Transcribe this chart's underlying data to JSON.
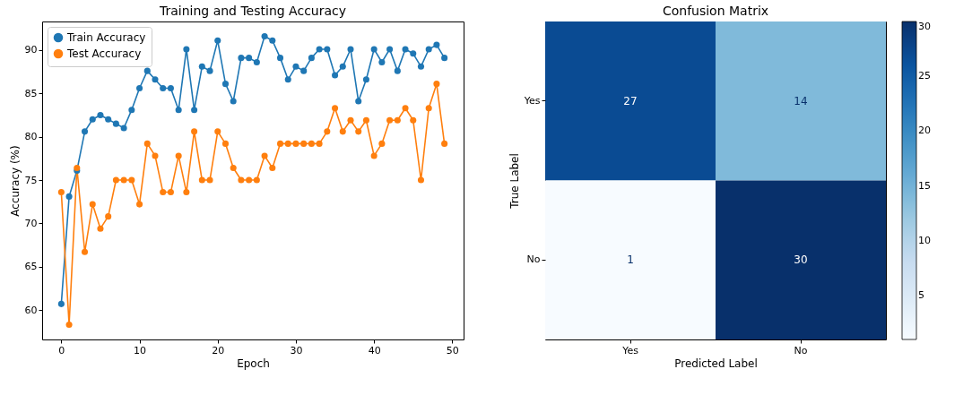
{
  "chart_data": [
    {
      "type": "line",
      "title": "Training and Testing Accuracy",
      "xlabel": "Epoch",
      "ylabel": "Accuracy (%)",
      "x": [
        0,
        1,
        2,
        3,
        4,
        5,
        6,
        7,
        8,
        9,
        10,
        11,
        12,
        13,
        14,
        15,
        16,
        17,
        18,
        19,
        20,
        21,
        22,
        23,
        24,
        25,
        26,
        27,
        28,
        29,
        30,
        31,
        32,
        33,
        34,
        35,
        36,
        37,
        38,
        39,
        40,
        41,
        42,
        43,
        44,
        45,
        46,
        47,
        48,
        49
      ],
      "series": [
        {
          "name": "Train Accuracy",
          "color": "#1f77b4",
          "values": [
            60.7,
            73.1,
            76.1,
            80.6,
            82.0,
            82.5,
            82.0,
            81.5,
            81.0,
            83.1,
            85.6,
            87.6,
            86.6,
            85.6,
            85.6,
            83.1,
            90.1,
            83.1,
            88.1,
            87.6,
            91.1,
            86.1,
            84.1,
            89.1,
            89.1,
            88.6,
            91.6,
            91.1,
            89.1,
            86.6,
            88.1,
            87.6,
            89.1,
            90.1,
            90.1,
            87.1,
            88.1,
            90.1,
            84.1,
            86.6,
            90.1,
            88.6,
            90.1,
            87.6,
            90.1,
            89.6,
            88.1,
            90.1,
            90.6,
            89.1
          ]
        },
        {
          "name": "Test Accuracy",
          "color": "#ff7f0e",
          "values": [
            73.6,
            58.3,
            76.4,
            66.7,
            72.2,
            69.4,
            70.8,
            75.0,
            75.0,
            75.0,
            72.2,
            79.2,
            77.8,
            73.6,
            73.6,
            77.8,
            73.6,
            80.6,
            75.0,
            75.0,
            80.6,
            79.2,
            76.4,
            75.0,
            75.0,
            75.0,
            77.8,
            76.4,
            79.2,
            79.2,
            79.2,
            79.2,
            79.2,
            79.2,
            80.6,
            83.3,
            80.6,
            81.9,
            80.6,
            81.9,
            77.8,
            79.2,
            81.9,
            81.9,
            83.3,
            81.9,
            75.0,
            83.3,
            86.1,
            79.2
          ]
        }
      ],
      "xlim": [
        -2.45,
        51.45
      ],
      "xticks": [
        0,
        10,
        20,
        30,
        40,
        50
      ],
      "ylim": [
        56.6,
        93.3
      ],
      "yticks": [
        60,
        65,
        70,
        75,
        80,
        85,
        90
      ],
      "legend": "top left",
      "marker": "circle",
      "grid": false
    },
    {
      "type": "heatmap",
      "title": "Confusion Matrix",
      "xlabel": "Predicted Label",
      "ylabel": "True Label",
      "categories": [
        "Yes",
        "No"
      ],
      "y_categories": [
        "Yes",
        "No"
      ],
      "cells": [
        [
          27,
          14
        ],
        [
          1,
          30
        ]
      ],
      "clim": [
        1,
        30
      ],
      "cticks": [
        5,
        10,
        15,
        20,
        25,
        30
      ],
      "data_labels": true
    }
  ]
}
